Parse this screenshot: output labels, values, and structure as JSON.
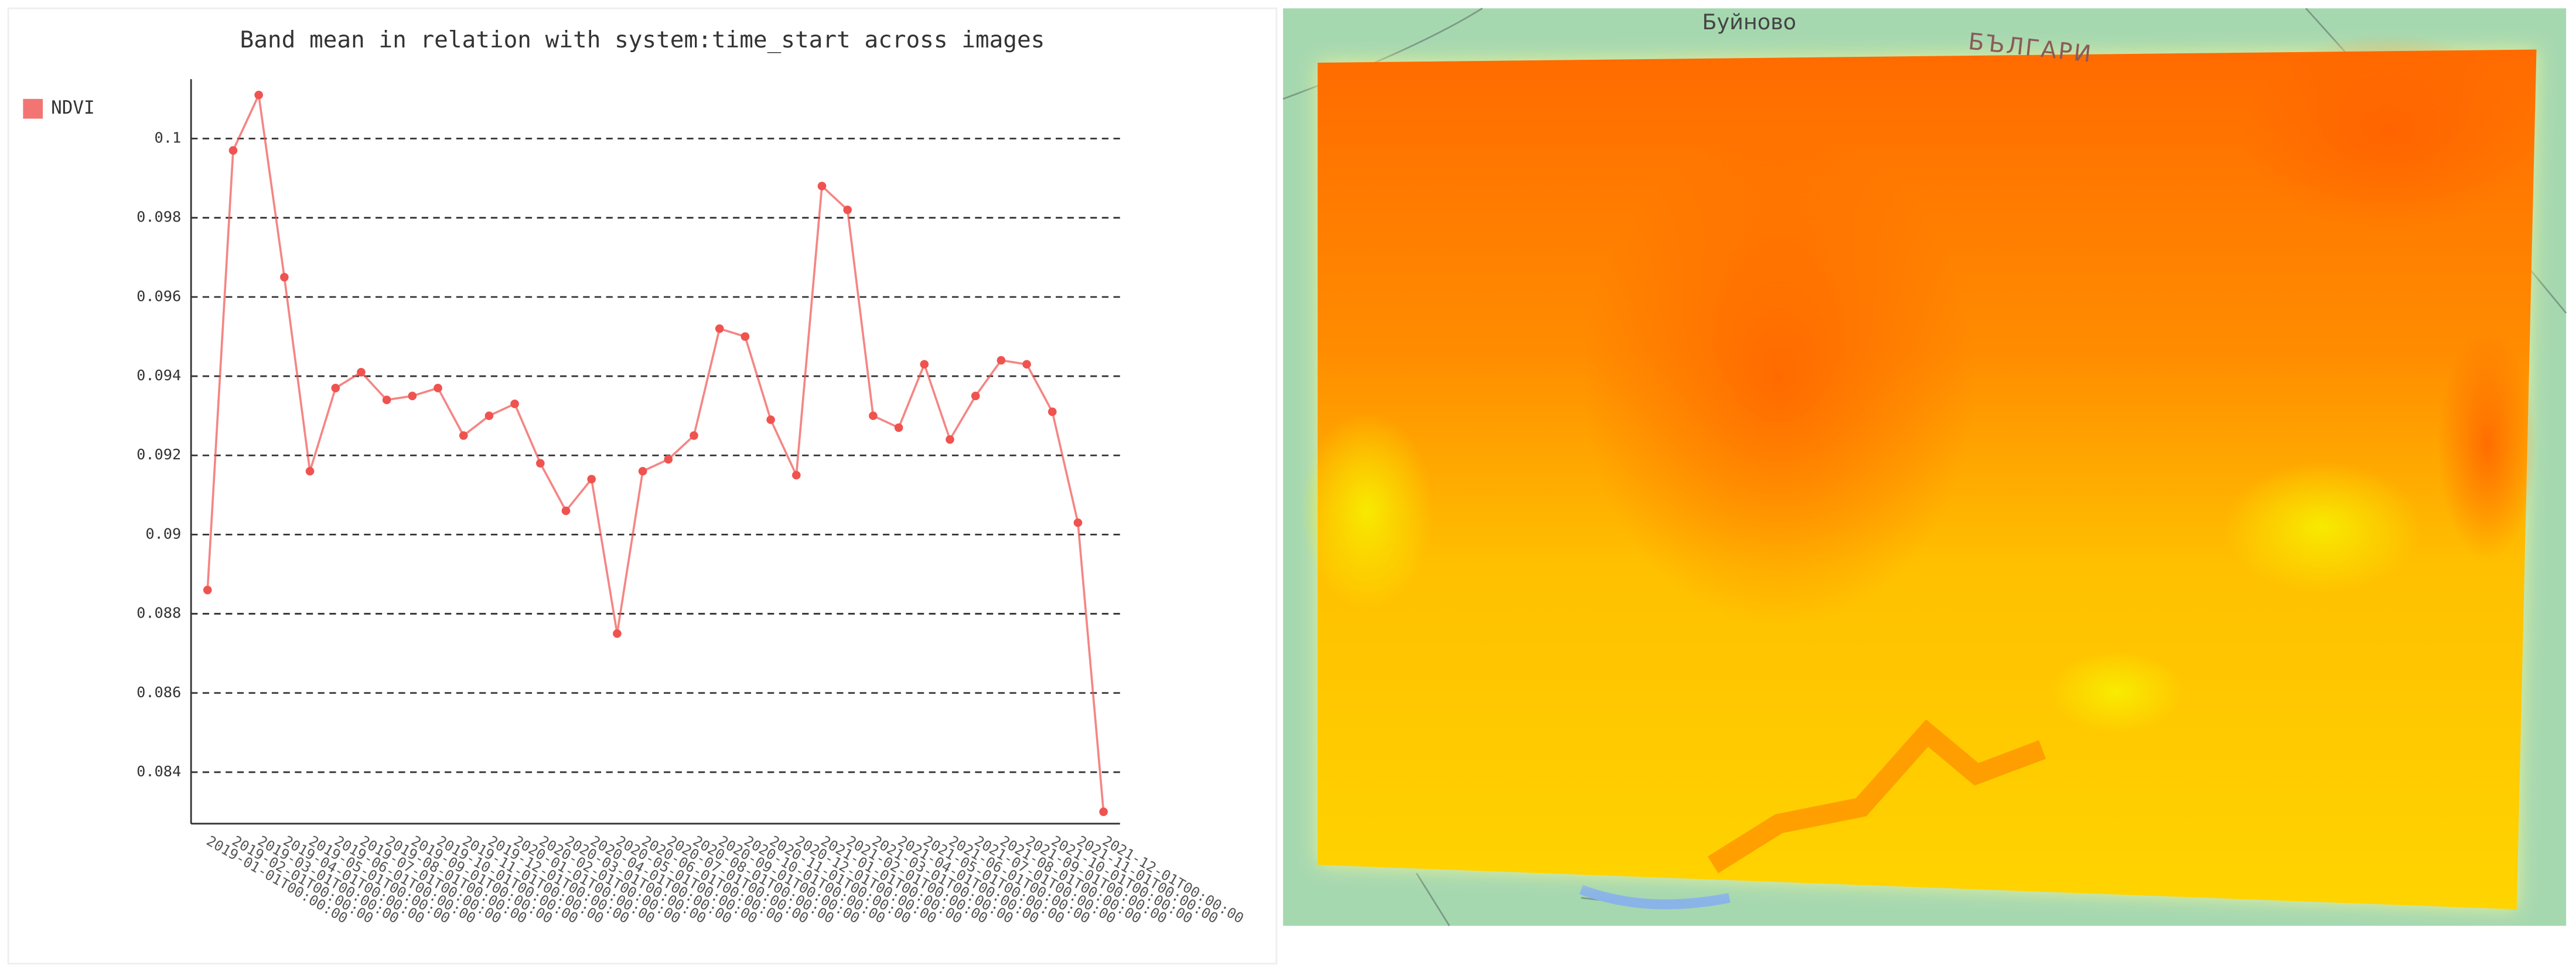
{
  "chart_data": {
    "type": "line",
    "title": "Band mean in relation with system:time_start across images",
    "categories": [
      "2019-01-01T00:00:00",
      "2019-02-01T00:00:00",
      "2019-03-01T00:00:00",
      "2019-04-01T00:00:00",
      "2019-05-01T00:00:00",
      "2019-06-01T00:00:00",
      "2019-07-01T00:00:00",
      "2019-08-01T00:00:00",
      "2019-09-01T00:00:00",
      "2019-10-01T00:00:00",
      "2019-11-01T00:00:00",
      "2019-12-01T00:00:00",
      "2020-01-01T00:00:00",
      "2020-02-01T00:00:00",
      "2020-03-01T00:00:00",
      "2020-04-01T00:00:00",
      "2020-05-01T00:00:00",
      "2020-06-01T00:00:00",
      "2020-07-01T00:00:00",
      "2020-08-01T00:00:00",
      "2020-09-01T00:00:00",
      "2020-10-01T00:00:00",
      "2020-11-01T00:00:00",
      "2020-12-01T00:00:00",
      "2021-01-01T00:00:00",
      "2021-02-01T00:00:00",
      "2021-03-01T00:00:00",
      "2021-04-01T00:00:00",
      "2021-05-01T00:00:00",
      "2021-06-01T00:00:00",
      "2021-07-01T00:00:00",
      "2021-08-01T00:00:00",
      "2021-09-01T00:00:00",
      "2021-10-01T00:00:00",
      "2021-11-01T00:00:00",
      "2021-12-01T00:00:00"
    ],
    "series": [
      {
        "name": "NDVI",
        "color": "#ef5350",
        "values": [
          0.0886,
          0.0997,
          0.1011,
          0.0965,
          0.0916,
          0.0937,
          0.0941,
          0.0934,
          0.0935,
          0.0937,
          0.0925,
          0.093,
          0.0933,
          0.0918,
          0.0906,
          0.0914,
          0.0875,
          0.0916,
          0.0919,
          0.0925,
          0.0952,
          0.095,
          0.0929,
          0.0915,
          0.0988,
          0.0982,
          0.093,
          0.0927,
          0.0943,
          0.0924,
          0.0935,
          0.0944,
          0.0943,
          0.0931,
          0.0903,
          0.083
        ]
      }
    ],
    "ylim": [
      0.0827,
      0.1015
    ],
    "yticks": [
      0.084,
      0.086,
      0.088,
      0.09,
      0.092,
      0.094,
      0.096,
      0.098,
      0.1
    ],
    "grid": true,
    "legend": "left"
  },
  "map": {
    "labels": [
      "Буйново",
      "БЪЛГАРИ"
    ]
  }
}
